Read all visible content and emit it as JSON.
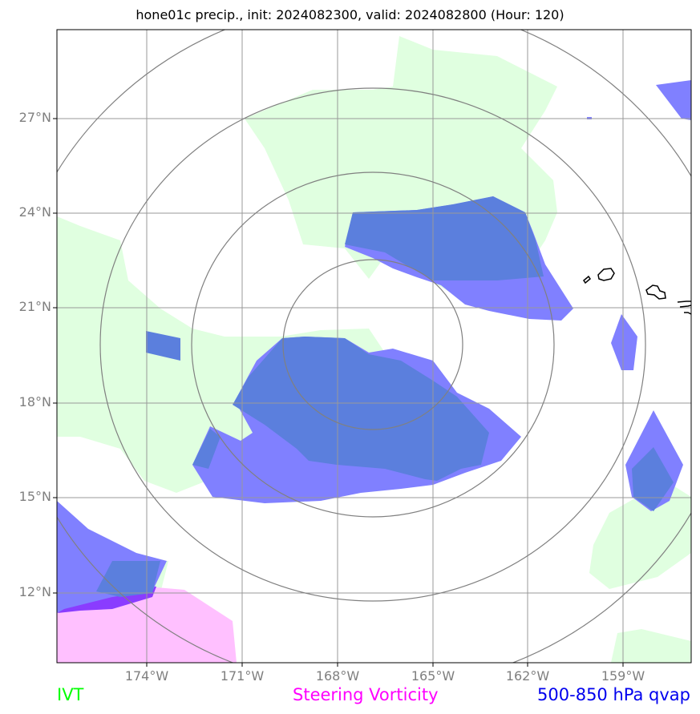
{
  "title": "hone01c precip., init: 2024082300, valid: 2024082800 (Hour: 120)",
  "lat_labels": [
    "27°N",
    "24°N",
    "21°N",
    "18°N",
    "15°N",
    "12°N"
  ],
  "lon_labels": [
    "174°W",
    "171°W",
    "168°W",
    "165°W",
    "162°W",
    "159°W"
  ],
  "legend": {
    "ivt": "IVT",
    "steering_vorticity": "Steering Vorticity",
    "qvap": "500-850 hPa qvap"
  },
  "colors": {
    "ivt": "#00ff00",
    "steering_vorticity": "#ff00ff",
    "qvap": "#0000ee",
    "ivt_fill": "#e0ffe0",
    "qvap_fill": "#8080ff",
    "qvap_dark_fill": "#5b7fdd",
    "vorticity_fill": "#ffc0ff",
    "grid": "#999999",
    "range_rings": "#808080",
    "coastline": "#000000"
  }
}
